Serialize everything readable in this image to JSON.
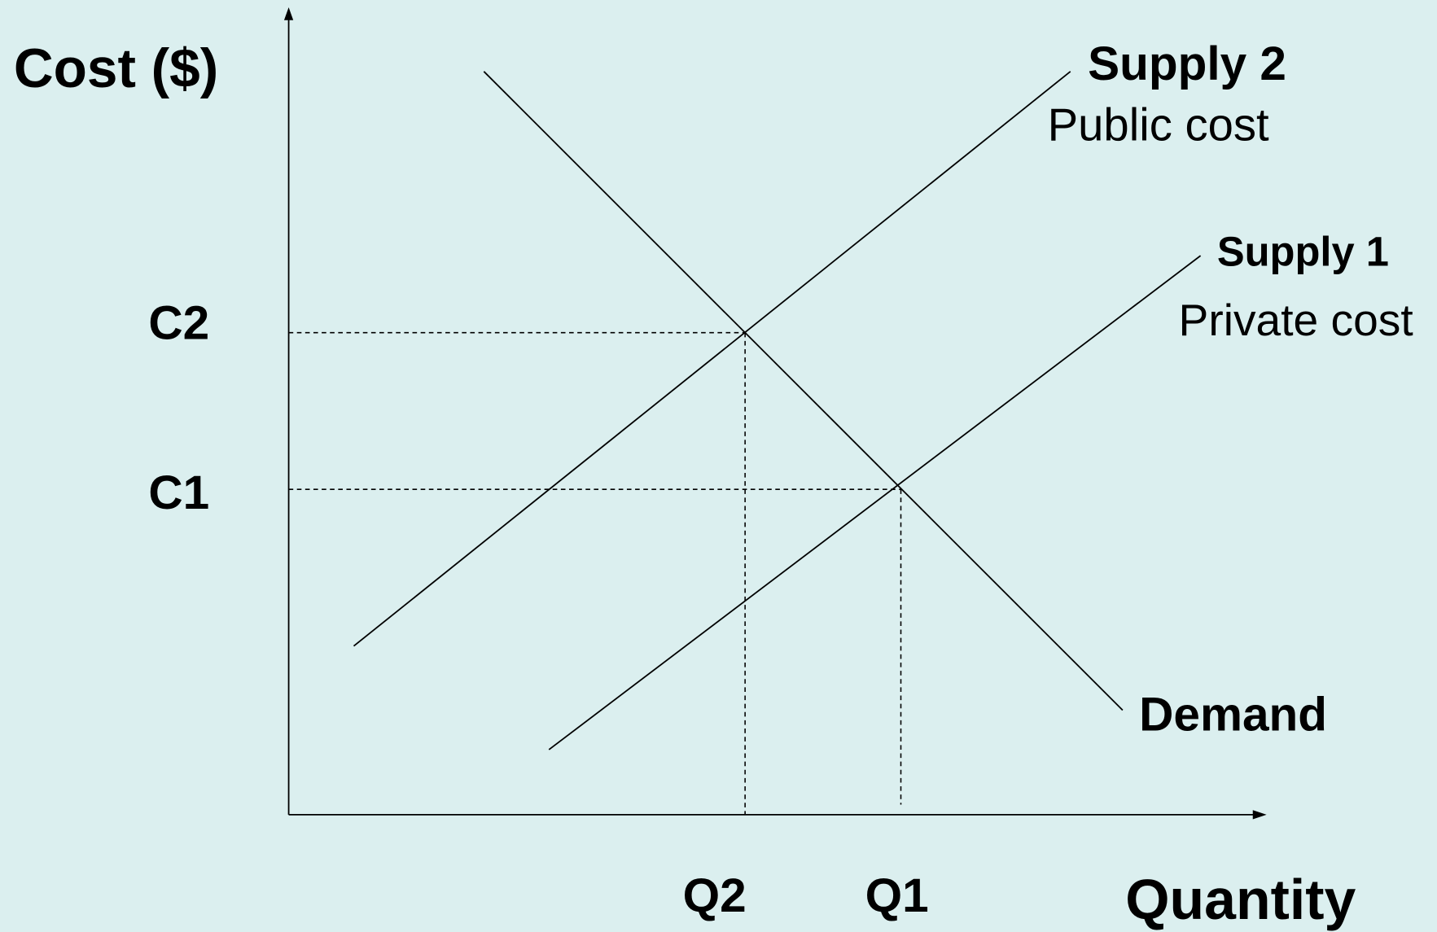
{
  "y_axis_label": "Cost ($)",
  "x_axis_label": "Quantity",
  "supply_2": {
    "name": "Supply 2",
    "description": "Public cost"
  },
  "supply_1": {
    "name": "Supply 1",
    "description": "Private cost"
  },
  "demand": {
    "name": "Demand"
  },
  "y_levels": [
    "C2",
    "C1"
  ],
  "x_levels": [
    "Q2",
    "Q1"
  ]
}
